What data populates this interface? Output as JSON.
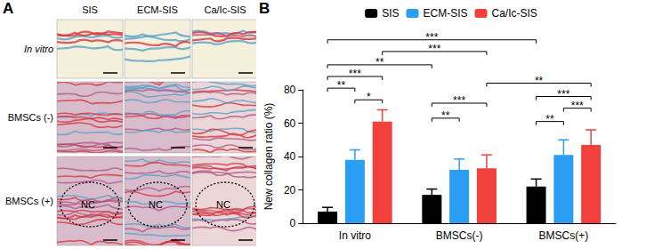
{
  "panel_labels": [
    "A",
    "B"
  ],
  "panel_a": {
    "columns": [
      "SIS",
      "ECM-SIS",
      "Ca/Ic-SIS"
    ],
    "rows": [
      "In vitro",
      "BMSCs (-)",
      "BMSCs (+)"
    ],
    "annotations": [
      {
        "row": 2,
        "column": 0,
        "text": "NC"
      },
      {
        "row": 2,
        "column": 1,
        "text": "NC"
      },
      {
        "row": 2,
        "column": 2,
        "text": "NC"
      }
    ]
  },
  "chart_data": {
    "type": "bar",
    "y_label": "New collagen ratio (%)",
    "categories": [
      "In vitro",
      "BMSCs(-)",
      "BMSCs(+)"
    ],
    "series": [
      {
        "name": "SIS",
        "color": "#000000",
        "values": [
          7,
          17,
          22
        ],
        "errors": [
          2.5,
          3.5,
          4.5
        ]
      },
      {
        "name": "ECM-SIS",
        "color": "#2b9ef3",
        "values": [
          38,
          32,
          41
        ],
        "errors": [
          6,
          6.5,
          9
        ]
      },
      {
        "name": "Ca/Ic-SIS",
        "color": "#f2403c",
        "values": [
          61,
          33,
          47
        ],
        "errors": [
          7,
          8,
          9
        ]
      }
    ],
    "ylim": [
      0,
      80
    ],
    "yticks": [
      0,
      20,
      40,
      60,
      80
    ],
    "legend": "top",
    "significance": [
      {
        "from": [
          0,
          0
        ],
        "to": [
          2,
          0
        ],
        "y": 110,
        "label": "***"
      },
      {
        "from": [
          0,
          2
        ],
        "to": [
          1,
          2
        ],
        "y": 103,
        "label": "***"
      },
      {
        "from": [
          0,
          0
        ],
        "to": [
          1,
          0
        ],
        "y": 95,
        "label": "**"
      },
      {
        "from": [
          0,
          0
        ],
        "to": [
          0,
          2
        ],
        "y": 88,
        "label": "***"
      },
      {
        "from": [
          0,
          0
        ],
        "to": [
          0,
          1
        ],
        "y": 81,
        "label": "**"
      },
      {
        "from": [
          0,
          1
        ],
        "to": [
          0,
          2
        ],
        "y": 74,
        "label": "*"
      },
      {
        "from": [
          1,
          2
        ],
        "to": [
          2,
          2
        ],
        "y": 84,
        "label": "**"
      },
      {
        "from": [
          1,
          0
        ],
        "to": [
          1,
          2
        ],
        "y": 72,
        "label": "***"
      },
      {
        "from": [
          1,
          0
        ],
        "to": [
          1,
          1
        ],
        "y": 63,
        "label": "**"
      },
      {
        "from": [
          2,
          0
        ],
        "to": [
          2,
          2
        ],
        "y": 76,
        "label": "***"
      },
      {
        "from": [
          2,
          1
        ],
        "to": [
          2,
          2
        ],
        "y": 69,
        "label": "***"
      },
      {
        "from": [
          2,
          0
        ],
        "to": [
          2,
          1
        ],
        "y": 61,
        "label": "**"
      }
    ]
  }
}
